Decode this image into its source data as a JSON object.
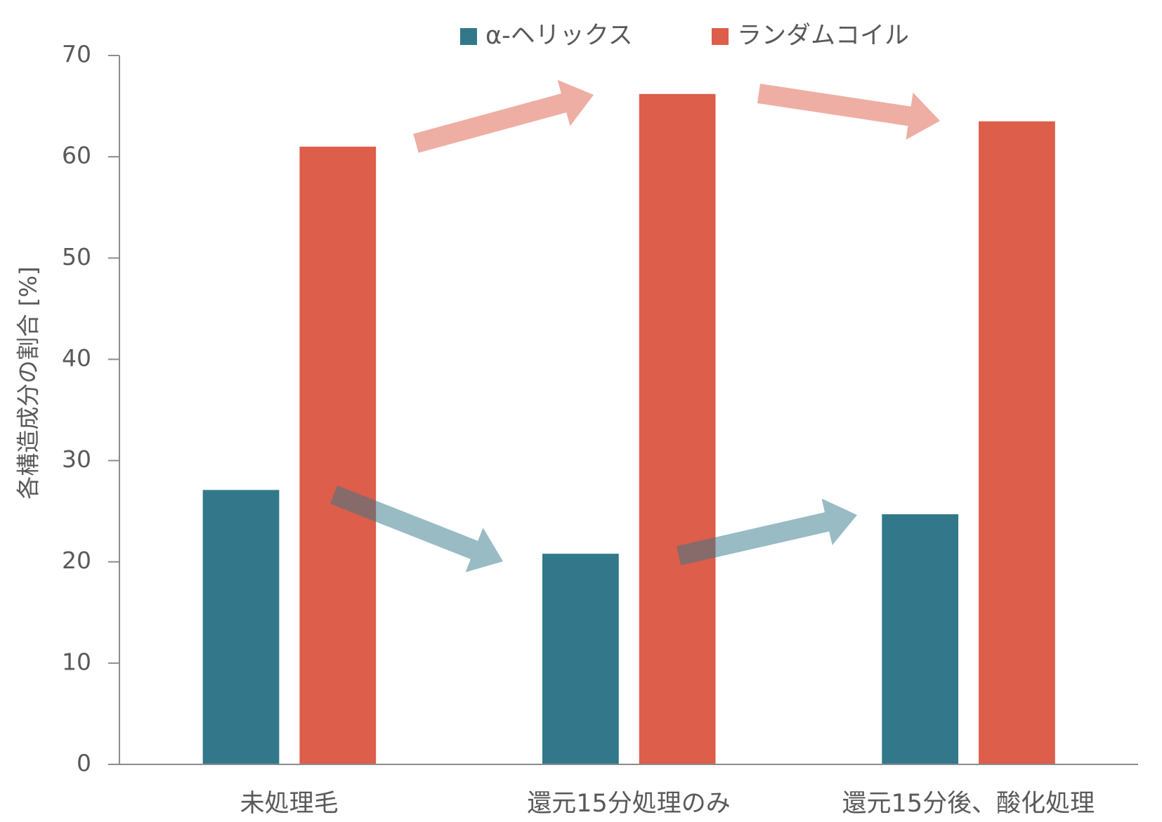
{
  "chart_data": {
    "type": "bar",
    "y_label": "各構造成分の割合 [%]",
    "categories": [
      "未処理毛",
      "還元15分処理のみ",
      "還元15分後、酸化処理"
    ],
    "series": [
      {
        "name": "α-ヘリックス",
        "color": "#32788a",
        "values": [
          27.1,
          20.8,
          24.7
        ]
      },
      {
        "name": "ランダムコイル",
        "color": "#dd5e4a",
        "values": [
          61.0,
          66.2,
          63.5
        ]
      }
    ],
    "ylim": [
      0,
      70
    ],
    "yticks": [
      0,
      10,
      20,
      30,
      40,
      50,
      60,
      70
    ],
    "grid": false
  }
}
